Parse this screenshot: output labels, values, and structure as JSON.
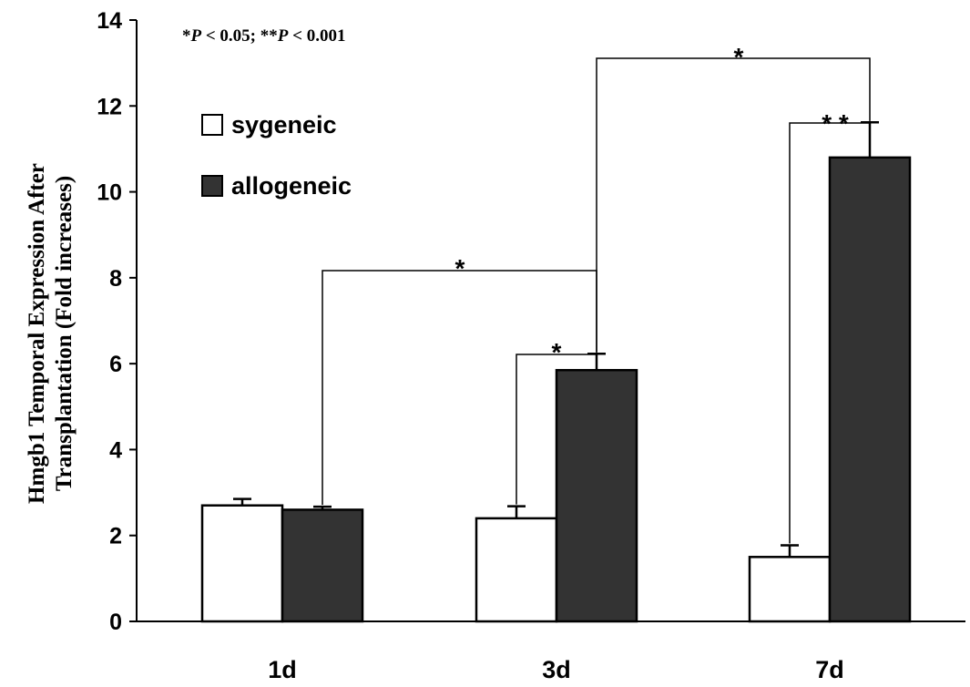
{
  "chart_data": {
    "type": "bar",
    "categories": [
      "1d",
      "3d",
      "7d"
    ],
    "series": [
      {
        "name": "sygeneic",
        "color": "#ffffff",
        "values": [
          2.7,
          2.4,
          1.5
        ],
        "errors": [
          0.15,
          0.28,
          0.27
        ]
      },
      {
        "name": "allogeneic",
        "color": "#333333",
        "values": [
          2.6,
          5.85,
          10.8
        ],
        "errors": [
          0.07,
          0.38,
          0.82
        ]
      }
    ],
    "ylabel_line1": "Hmgb1 Temporal Expression After",
    "ylabel_line2": "Transplantation (Fold increases)",
    "ylim": [
      0,
      14
    ],
    "yticks": [
      "0",
      "2",
      "4",
      "6",
      "8",
      "10",
      "12",
      "14"
    ],
    "note": {
      "part1": "*",
      "part2": "P",
      "part3": " < 0.05; **",
      "part4": "P",
      "part5": " < 0.001"
    },
    "legend_position": "top-left",
    "significance": [
      {
        "label": "*",
        "from": "1d-allogeneic",
        "to": "3d-allogeneic"
      },
      {
        "label": "*",
        "from": "3d-sygeneic",
        "to": "3d-allogeneic"
      },
      {
        "label": "*",
        "from": "3d-allogeneic",
        "to": "7d-allogeneic"
      },
      {
        "label": "* *",
        "from": "7d-sygeneic",
        "to": "7d-allogeneic"
      }
    ]
  }
}
